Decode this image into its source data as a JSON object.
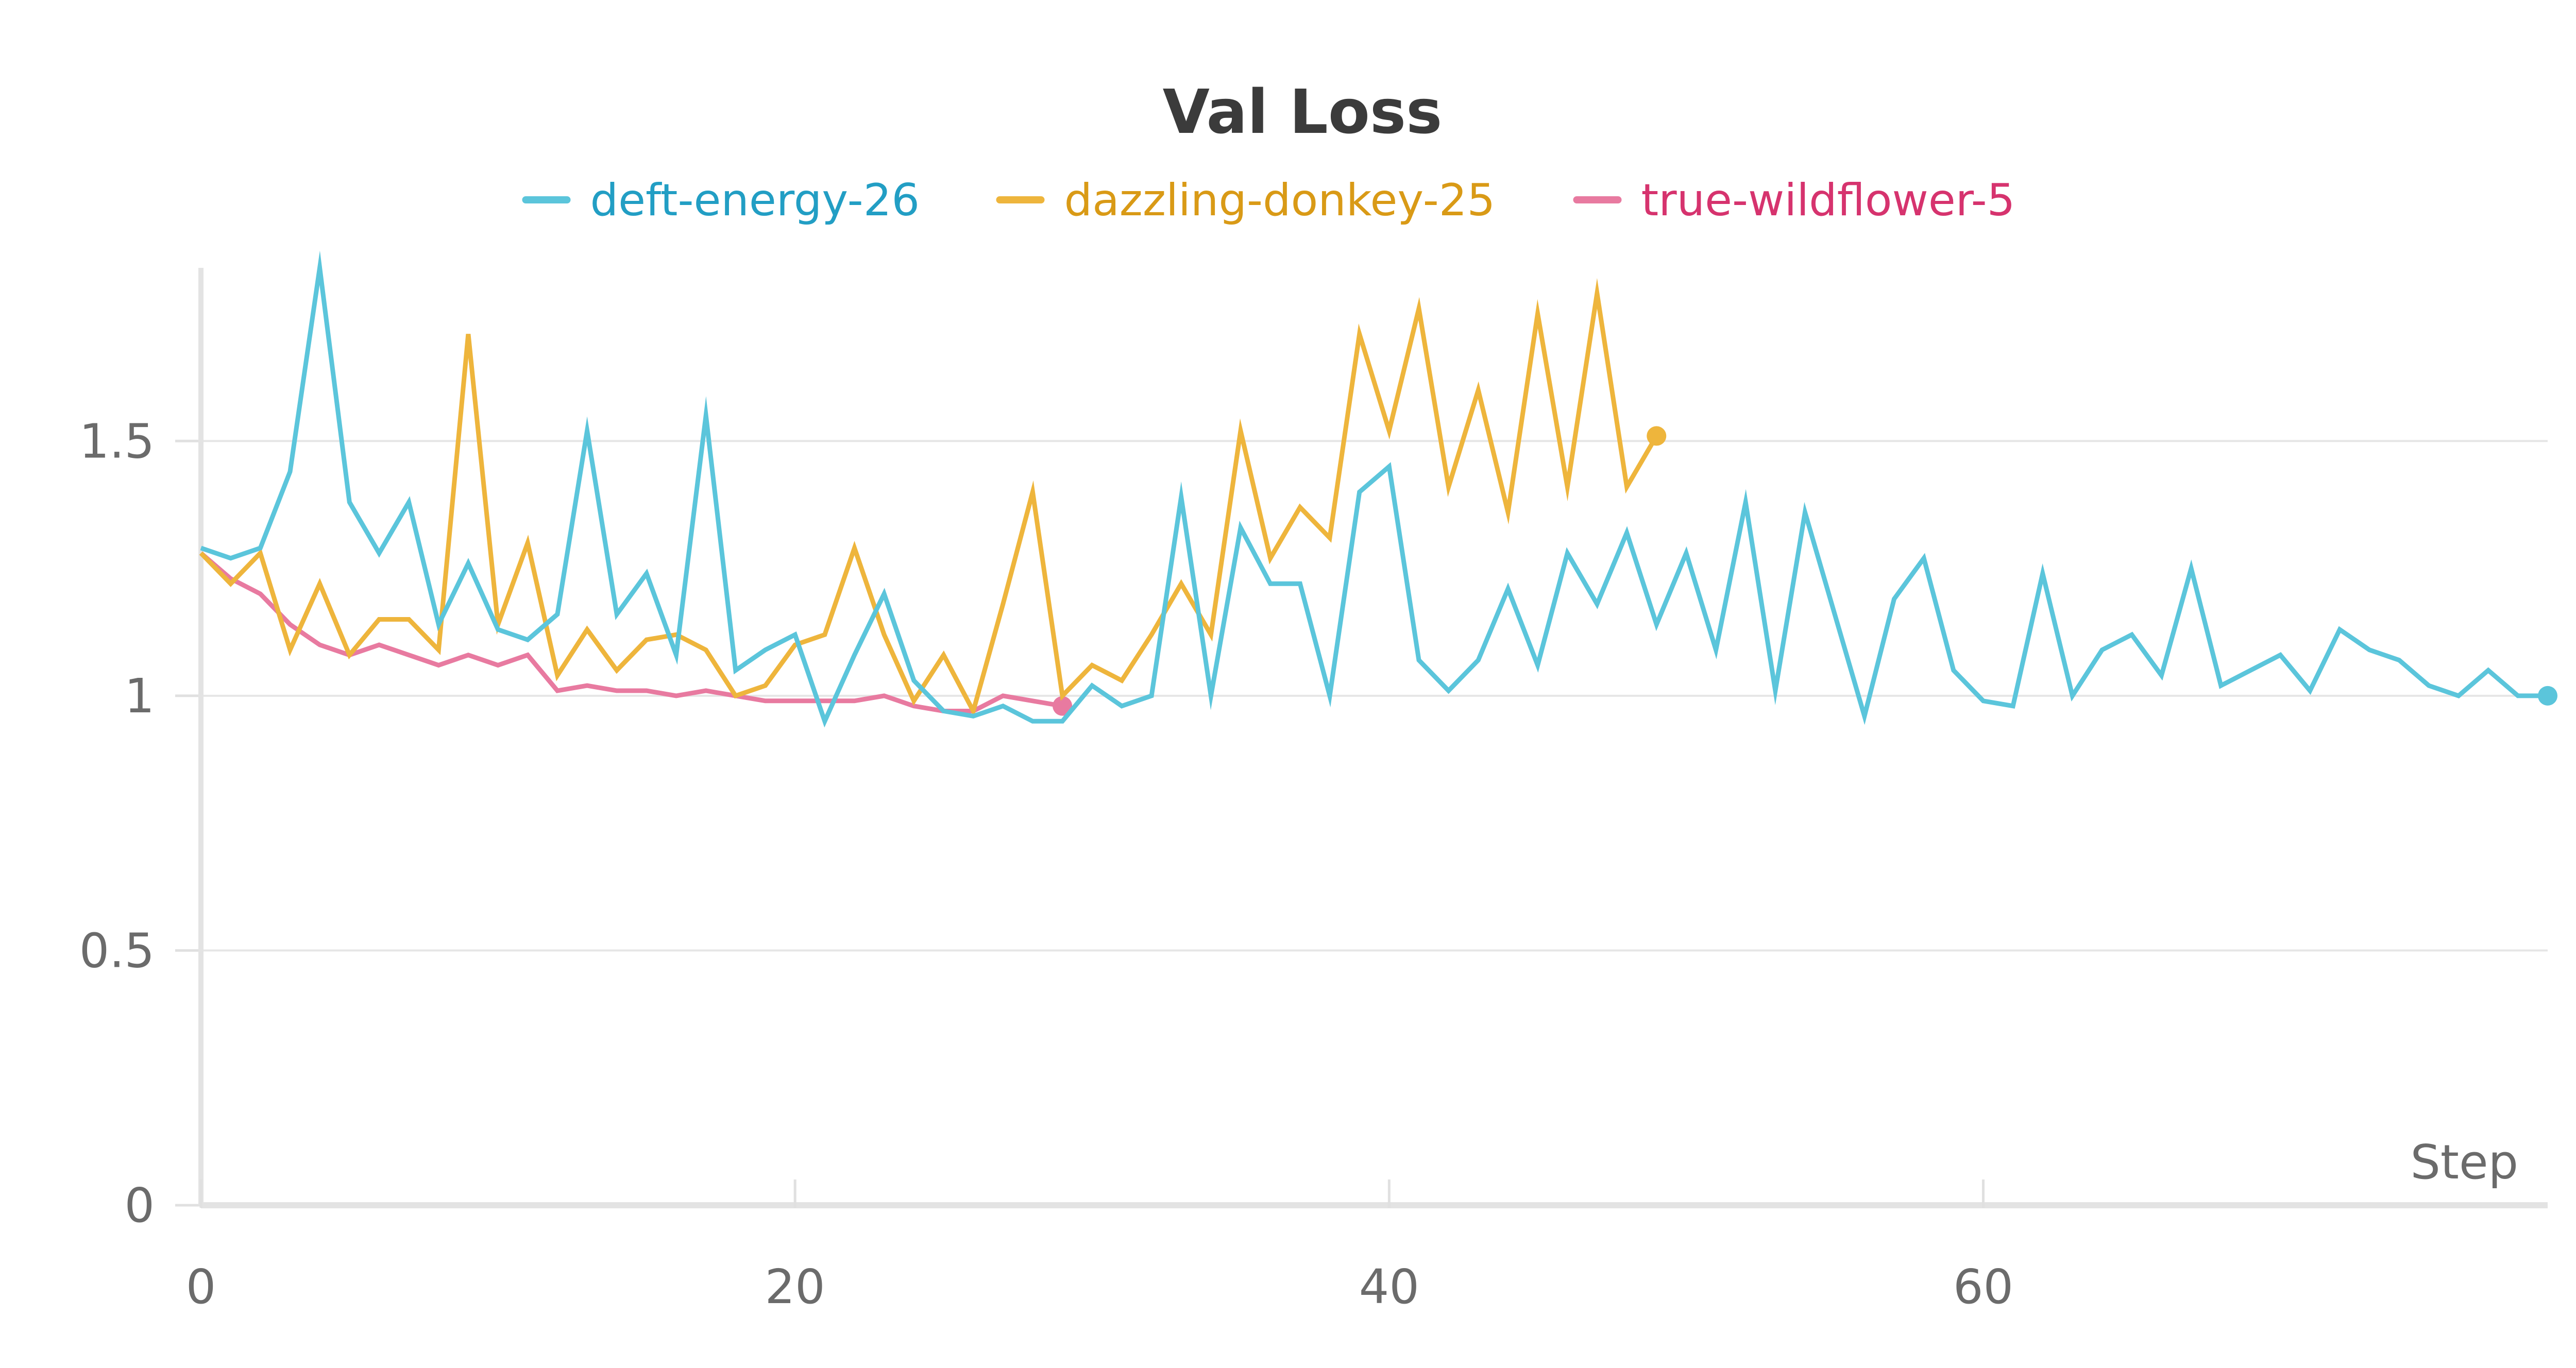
{
  "chart_data": {
    "type": "line",
    "title": "Val Loss",
    "xlabel": "Step",
    "ylabel": "",
    "xlim": [
      0,
      79
    ],
    "ylim": [
      0,
      1.84
    ],
    "x_ticks": [
      0,
      20,
      40,
      60
    ],
    "y_ticks": [
      0,
      0.5,
      1,
      1.5
    ],
    "y_tick_labels": [
      "0",
      "0.5",
      "1",
      "1.5"
    ],
    "grid": "horizontal",
    "legend_position": "top-center",
    "series": [
      {
        "name": "deft-energy-26",
        "color": "#5bc5db",
        "text_color": "#229ec4",
        "x": [
          0,
          1,
          2,
          3,
          4,
          5,
          6,
          7,
          8,
          9,
          10,
          11,
          12,
          13,
          14,
          15,
          16,
          17,
          18,
          19,
          20,
          21,
          22,
          23,
          24,
          25,
          26,
          27,
          28,
          29,
          30,
          31,
          32,
          33,
          34,
          35,
          36,
          37,
          38,
          39,
          40,
          41,
          42,
          43,
          44,
          45,
          46,
          47,
          48,
          49,
          50,
          51,
          52,
          53,
          54,
          55,
          56,
          57,
          58,
          59,
          60,
          61,
          62,
          63,
          64,
          65,
          66,
          67,
          68,
          69,
          70,
          71,
          72,
          73,
          74,
          75,
          76,
          77,
          78,
          79
        ],
        "values": [
          1.29,
          1.27,
          1.29,
          1.44,
          1.84,
          1.38,
          1.28,
          1.38,
          1.14,
          1.26,
          1.13,
          1.11,
          1.16,
          1.52,
          1.16,
          1.24,
          1.08,
          1.55,
          1.05,
          1.09,
          1.12,
          0.95,
          1.08,
          1.2,
          1.03,
          0.97,
          0.96,
          0.98,
          0.95,
          0.95,
          1.02,
          0.98,
          1.0,
          1.39,
          1.0,
          1.33,
          1.22,
          1.22,
          1.0,
          1.4,
          1.45,
          1.07,
          1.01,
          1.07,
          1.21,
          1.06,
          1.28,
          1.18,
          1.32,
          1.14,
          1.28,
          1.09,
          1.38,
          1.01,
          1.36,
          1.16,
          0.96,
          1.19,
          1.27,
          1.05,
          0.99,
          0.98,
          1.24,
          1.0,
          1.09,
          1.12,
          1.04,
          1.25,
          1.02,
          1.05,
          1.08,
          1.01,
          1.13,
          1.09,
          1.07,
          1.02,
          1.0,
          1.05,
          1.0,
          1.0
        ]
      },
      {
        "name": "dazzling-donkey-25",
        "color": "#eeb53c",
        "text_color": "#d99a16",
        "x": [
          0,
          1,
          2,
          3,
          4,
          5,
          6,
          7,
          8,
          9,
          10,
          11,
          12,
          13,
          14,
          15,
          16,
          17,
          18,
          19,
          20,
          21,
          22,
          23,
          24,
          25,
          26,
          27,
          28,
          29,
          30,
          31,
          32,
          33,
          34,
          35,
          36,
          37,
          38,
          39,
          40,
          41,
          42,
          43,
          44,
          45,
          46,
          47,
          48,
          49
        ],
        "values": [
          1.28,
          1.22,
          1.28,
          1.09,
          1.22,
          1.08,
          1.15,
          1.15,
          1.09,
          1.71,
          1.14,
          1.3,
          1.04,
          1.13,
          1.05,
          1.11,
          1.12,
          1.09,
          1.0,
          1.02,
          1.1,
          1.12,
          1.29,
          1.12,
          0.99,
          1.08,
          0.97,
          1.18,
          1.4,
          1.0,
          1.06,
          1.03,
          1.12,
          1.22,
          1.12,
          1.52,
          1.27,
          1.37,
          1.31,
          1.71,
          1.52,
          1.76,
          1.41,
          1.6,
          1.36,
          1.75,
          1.41,
          1.79,
          1.41,
          1.51
        ]
      },
      {
        "name": "true-wildflower-5",
        "color": "#e87aa0",
        "text_color": "#d6336e",
        "x": [
          0,
          1,
          2,
          3,
          4,
          5,
          6,
          7,
          8,
          9,
          10,
          11,
          12,
          13,
          14,
          15,
          16,
          17,
          18,
          19,
          20,
          21,
          22,
          23,
          24,
          25,
          26,
          27,
          28,
          29
        ],
        "values": [
          1.28,
          1.23,
          1.2,
          1.14,
          1.1,
          1.08,
          1.1,
          1.08,
          1.06,
          1.08,
          1.06,
          1.08,
          1.01,
          1.02,
          1.01,
          1.01,
          1.0,
          1.01,
          1.0,
          0.99,
          0.99,
          0.99,
          0.99,
          1.0,
          0.98,
          0.97,
          0.97,
          1.0,
          0.99,
          0.98
        ]
      }
    ]
  }
}
